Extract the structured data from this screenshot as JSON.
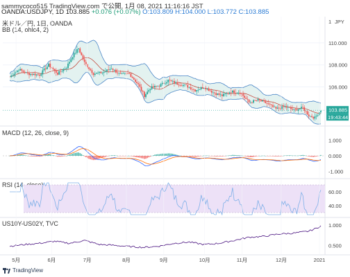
{
  "header": {
    "line1": "sammycoco515 TradingView.com で公開, 1月 08, 2021 11:16:16 JST",
    "pair": "OANDA:USDJPY, 1D 103.885",
    "change": "+0.076 (+0.07%)",
    "ohlc": "O:103.809 H:104.000 L:103.772 C:103.885"
  },
  "labels": {
    "main1": "米ドル／円, 1日, OANDA",
    "main2": "BB (14, ohlc4, 2)",
    "macd": "MACD (12, 26, close, 9)",
    "rsi": "RSI (14, close)",
    "us10y": "US10Y-US02Y, TVC",
    "currency": "JPY",
    "timer": "19:43:44",
    "tradingview": "TradingView"
  },
  "colors": {
    "up": "#26a69a",
    "down": "#ef5350",
    "bb_fill": "#d7ece9",
    "bb_line": "#4a86c7",
    "bb_mid": "#c0392b",
    "macd": "#2962ff",
    "signal": "#ff6d00",
    "rsi": "#7eb0e8",
    "rsi_band": "#ede1f7",
    "spread": "#5b2a8c",
    "price_tag": "#26a69a"
  },
  "chart_data": [
    {
      "type": "candlestick",
      "title": "米ドル／円, 1日, OANDA",
      "y_ticks": [
        106.0,
        108.0,
        110.0
      ],
      "ylim": [
        102.7,
        111.0
      ],
      "x_labels": [
        "5月",
        "6月",
        "7月",
        "8月",
        "9月",
        "10月",
        "11月",
        "12月",
        "2021"
      ],
      "close_path": [
        [
          0,
          106.9
        ],
        [
          6,
          107.6
        ],
        [
          12,
          107.2
        ],
        [
          20,
          107.1
        ],
        [
          26,
          108.0
        ],
        [
          32,
          107.2
        ],
        [
          38,
          107.8
        ],
        [
          42,
          108.8
        ],
        [
          46,
          109.5
        ],
        [
          50,
          108.2
        ],
        [
          56,
          107.2
        ],
        [
          62,
          107.3
        ],
        [
          68,
          107.7
        ],
        [
          74,
          107.1
        ],
        [
          80,
          107.2
        ],
        [
          86,
          106.2
        ],
        [
          90,
          105.2
        ],
        [
          94,
          105.9
        ],
        [
          100,
          106.1
        ],
        [
          106,
          106.6
        ],
        [
          112,
          106.3
        ],
        [
          118,
          106.1
        ],
        [
          124,
          105.7
        ],
        [
          130,
          106.0
        ],
        [
          136,
          105.5
        ],
        [
          142,
          105.2
        ],
        [
          148,
          105.6
        ],
        [
          154,
          105.5
        ],
        [
          160,
          104.6
        ],
        [
          166,
          104.8
        ],
        [
          172,
          104.5
        ],
        [
          178,
          104.0
        ],
        [
          184,
          104.2
        ],
        [
          190,
          103.9
        ],
        [
          196,
          104.1
        ],
        [
          200,
          103.4
        ],
        [
          204,
          103.2
        ],
        [
          208,
          103.9
        ]
      ],
      "last_price": 103.885
    },
    {
      "type": "macd",
      "title": "MACD (12, 26, close, 9)",
      "y_ticks": [
        1.0,
        0.0,
        -1.0
      ],
      "ylim": [
        -1.3,
        1.3
      ]
    },
    {
      "type": "line",
      "title": "RSI (14, close)",
      "y_ticks": [
        60.0,
        40.0
      ],
      "band": [
        30,
        70
      ],
      "ylim": [
        25,
        75
      ]
    },
    {
      "type": "line",
      "title": "US10Y-US02Y, TVC",
      "y_ticks": [
        1.0,
        0.5
      ],
      "ylim": [
        0.3,
        1.05
      ],
      "points": [
        [
          0,
          0.48
        ],
        [
          10,
          0.52
        ],
        [
          20,
          0.55
        ],
        [
          30,
          0.6
        ],
        [
          40,
          0.55
        ],
        [
          50,
          0.62
        ],
        [
          60,
          0.52
        ],
        [
          70,
          0.5
        ],
        [
          80,
          0.47
        ],
        [
          90,
          0.45
        ],
        [
          100,
          0.48
        ],
        [
          110,
          0.55
        ],
        [
          120,
          0.58
        ],
        [
          130,
          0.52
        ],
        [
          140,
          0.55
        ],
        [
          150,
          0.62
        ],
        [
          160,
          0.7
        ],
        [
          170,
          0.72
        ],
        [
          180,
          0.78
        ],
        [
          190,
          0.8
        ],
        [
          200,
          0.85
        ],
        [
          205,
          0.92
        ],
        [
          208,
          0.98
        ]
      ]
    }
  ]
}
